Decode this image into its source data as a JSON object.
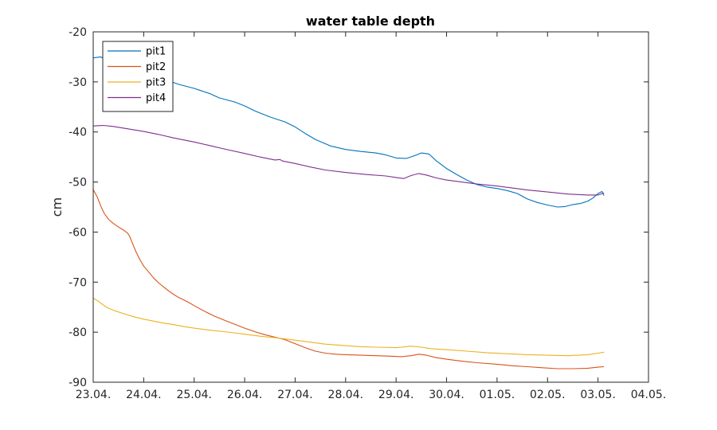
{
  "chart_data": {
    "type": "line",
    "title": "water table depth",
    "xlabel": "",
    "ylabel": "cm",
    "ylim": [
      -90,
      -20
    ],
    "xlim": [
      0,
      11
    ],
    "yticks": [
      "-20",
      "-30",
      "-40",
      "-50",
      "-60",
      "-70",
      "-80",
      "-90"
    ],
    "xticks": [
      "23.04.",
      "24.04.",
      "25.04.",
      "26.04.",
      "27.04.",
      "28.04.",
      "29.04.",
      "30.04.",
      "01.05.",
      "02.05.",
      "03.05.",
      "04.05."
    ],
    "grid": false,
    "legend_position": "top-left",
    "series": [
      {
        "name": "pit1",
        "color": "#0072BD",
        "points": [
          [
            0.0,
            -25.2
          ],
          [
            0.15,
            -25.0
          ],
          [
            0.3,
            -26.0
          ],
          [
            0.5,
            -26.8
          ],
          [
            0.7,
            -27.5
          ],
          [
            1.0,
            -28.2
          ],
          [
            1.3,
            -29.0
          ],
          [
            1.5,
            -29.8
          ],
          [
            1.7,
            -30.5
          ],
          [
            2.0,
            -31.3
          ],
          [
            2.3,
            -32.3
          ],
          [
            2.5,
            -33.2
          ],
          [
            2.8,
            -34.0
          ],
          [
            3.0,
            -34.8
          ],
          [
            3.2,
            -35.8
          ],
          [
            3.5,
            -37.0
          ],
          [
            3.8,
            -38.0
          ],
          [
            4.0,
            -39.0
          ],
          [
            4.2,
            -40.3
          ],
          [
            4.4,
            -41.5
          ],
          [
            4.7,
            -42.8
          ],
          [
            5.0,
            -43.5
          ],
          [
            5.3,
            -43.9
          ],
          [
            5.6,
            -44.2
          ],
          [
            5.8,
            -44.6
          ],
          [
            6.0,
            -45.2
          ],
          [
            6.2,
            -45.3
          ],
          [
            6.35,
            -44.8
          ],
          [
            6.5,
            -44.2
          ],
          [
            6.65,
            -44.4
          ],
          [
            6.8,
            -45.8
          ],
          [
            7.0,
            -47.3
          ],
          [
            7.2,
            -48.5
          ],
          [
            7.4,
            -49.6
          ],
          [
            7.6,
            -50.5
          ],
          [
            7.8,
            -51.0
          ],
          [
            8.0,
            -51.3
          ],
          [
            8.2,
            -51.7
          ],
          [
            8.4,
            -52.3
          ],
          [
            8.6,
            -53.4
          ],
          [
            8.8,
            -54.1
          ],
          [
            9.0,
            -54.6
          ],
          [
            9.2,
            -55.0
          ],
          [
            9.35,
            -54.9
          ],
          [
            9.5,
            -54.5
          ],
          [
            9.65,
            -54.3
          ],
          [
            9.8,
            -53.8
          ],
          [
            9.9,
            -53.2
          ],
          [
            10.0,
            -52.3
          ],
          [
            10.08,
            -51.9
          ],
          [
            10.12,
            -52.7
          ]
        ]
      },
      {
        "name": "pit2",
        "color": "#D95319",
        "points": [
          [
            0.0,
            -51.5
          ],
          [
            0.08,
            -53.0
          ],
          [
            0.15,
            -54.8
          ],
          [
            0.22,
            -56.3
          ],
          [
            0.3,
            -57.4
          ],
          [
            0.4,
            -58.3
          ],
          [
            0.5,
            -59.0
          ],
          [
            0.6,
            -59.6
          ],
          [
            0.68,
            -60.2
          ],
          [
            0.72,
            -60.8
          ],
          [
            0.78,
            -62.3
          ],
          [
            0.85,
            -64.0
          ],
          [
            0.93,
            -65.6
          ],
          [
            1.0,
            -66.8
          ],
          [
            1.1,
            -68.0
          ],
          [
            1.2,
            -69.2
          ],
          [
            1.3,
            -70.2
          ],
          [
            1.4,
            -71.0
          ],
          [
            1.5,
            -71.8
          ],
          [
            1.6,
            -72.5
          ],
          [
            1.7,
            -73.1
          ],
          [
            1.8,
            -73.6
          ],
          [
            1.9,
            -74.1
          ],
          [
            2.0,
            -74.7
          ],
          [
            2.2,
            -75.8
          ],
          [
            2.4,
            -76.8
          ],
          [
            2.6,
            -77.6
          ],
          [
            2.8,
            -78.4
          ],
          [
            3.0,
            -79.2
          ],
          [
            3.2,
            -79.9
          ],
          [
            3.4,
            -80.5
          ],
          [
            3.6,
            -81.0
          ],
          [
            3.8,
            -81.5
          ],
          [
            4.0,
            -82.3
          ],
          [
            4.2,
            -83.1
          ],
          [
            4.4,
            -83.8
          ],
          [
            4.6,
            -84.2
          ],
          [
            4.8,
            -84.4
          ],
          [
            5.0,
            -84.5
          ],
          [
            5.3,
            -84.6
          ],
          [
            5.6,
            -84.7
          ],
          [
            5.9,
            -84.8
          ],
          [
            6.1,
            -84.9
          ],
          [
            6.3,
            -84.7
          ],
          [
            6.45,
            -84.4
          ],
          [
            6.6,
            -84.6
          ],
          [
            6.8,
            -85.1
          ],
          [
            7.0,
            -85.4
          ],
          [
            7.3,
            -85.8
          ],
          [
            7.6,
            -86.1
          ],
          [
            8.0,
            -86.4
          ],
          [
            8.3,
            -86.7
          ],
          [
            8.6,
            -86.9
          ],
          [
            8.9,
            -87.1
          ],
          [
            9.2,
            -87.3
          ],
          [
            9.5,
            -87.3
          ],
          [
            9.8,
            -87.2
          ],
          [
            10.0,
            -87.0
          ],
          [
            10.12,
            -86.9
          ]
        ]
      },
      {
        "name": "pit3",
        "color": "#EDB120",
        "points": [
          [
            0.0,
            -73.2
          ],
          [
            0.1,
            -73.8
          ],
          [
            0.2,
            -74.6
          ],
          [
            0.3,
            -75.2
          ],
          [
            0.45,
            -75.8
          ],
          [
            0.6,
            -76.3
          ],
          [
            0.8,
            -76.9
          ],
          [
            1.0,
            -77.4
          ],
          [
            1.2,
            -77.8
          ],
          [
            1.4,
            -78.2
          ],
          [
            1.6,
            -78.5
          ],
          [
            1.8,
            -78.9
          ],
          [
            2.0,
            -79.2
          ],
          [
            2.3,
            -79.6
          ],
          [
            2.6,
            -79.9
          ],
          [
            3.0,
            -80.4
          ],
          [
            3.3,
            -80.8
          ],
          [
            3.6,
            -81.1
          ],
          [
            4.0,
            -81.6
          ],
          [
            4.3,
            -82.0
          ],
          [
            4.6,
            -82.4
          ],
          [
            5.0,
            -82.7
          ],
          [
            5.3,
            -82.9
          ],
          [
            5.6,
            -83.0
          ],
          [
            6.0,
            -83.1
          ],
          [
            6.1,
            -83.0
          ],
          [
            6.3,
            -82.8
          ],
          [
            6.5,
            -83.0
          ],
          [
            6.7,
            -83.3
          ],
          [
            7.0,
            -83.5
          ],
          [
            7.4,
            -83.8
          ],
          [
            7.8,
            -84.1
          ],
          [
            8.2,
            -84.3
          ],
          [
            8.6,
            -84.5
          ],
          [
            9.0,
            -84.6
          ],
          [
            9.4,
            -84.7
          ],
          [
            9.8,
            -84.5
          ],
          [
            10.0,
            -84.2
          ],
          [
            10.12,
            -84.0
          ]
        ]
      },
      {
        "name": "pit4",
        "color": "#7E2F8E",
        "points": [
          [
            0.0,
            -38.8
          ],
          [
            0.2,
            -38.7
          ],
          [
            0.4,
            -38.9
          ],
          [
            0.7,
            -39.4
          ],
          [
            1.0,
            -39.9
          ],
          [
            1.3,
            -40.5
          ],
          [
            1.6,
            -41.2
          ],
          [
            2.0,
            -42.0
          ],
          [
            2.3,
            -42.7
          ],
          [
            2.6,
            -43.4
          ],
          [
            3.0,
            -44.3
          ],
          [
            3.3,
            -45.0
          ],
          [
            3.6,
            -45.6
          ],
          [
            3.7,
            -45.5
          ],
          [
            3.75,
            -45.8
          ],
          [
            4.0,
            -46.3
          ],
          [
            4.3,
            -47.0
          ],
          [
            4.6,
            -47.6
          ],
          [
            5.0,
            -48.1
          ],
          [
            5.4,
            -48.5
          ],
          [
            5.8,
            -48.8
          ],
          [
            6.0,
            -49.1
          ],
          [
            6.15,
            -49.3
          ],
          [
            6.3,
            -48.7
          ],
          [
            6.45,
            -48.3
          ],
          [
            6.6,
            -48.6
          ],
          [
            6.8,
            -49.2
          ],
          [
            7.0,
            -49.6
          ],
          [
            7.3,
            -50.0
          ],
          [
            7.6,
            -50.4
          ],
          [
            8.0,
            -50.8
          ],
          [
            8.3,
            -51.2
          ],
          [
            8.6,
            -51.6
          ],
          [
            9.0,
            -52.0
          ],
          [
            9.4,
            -52.4
          ],
          [
            9.8,
            -52.6
          ],
          [
            10.0,
            -52.6
          ],
          [
            10.12,
            -52.2
          ]
        ]
      }
    ]
  }
}
